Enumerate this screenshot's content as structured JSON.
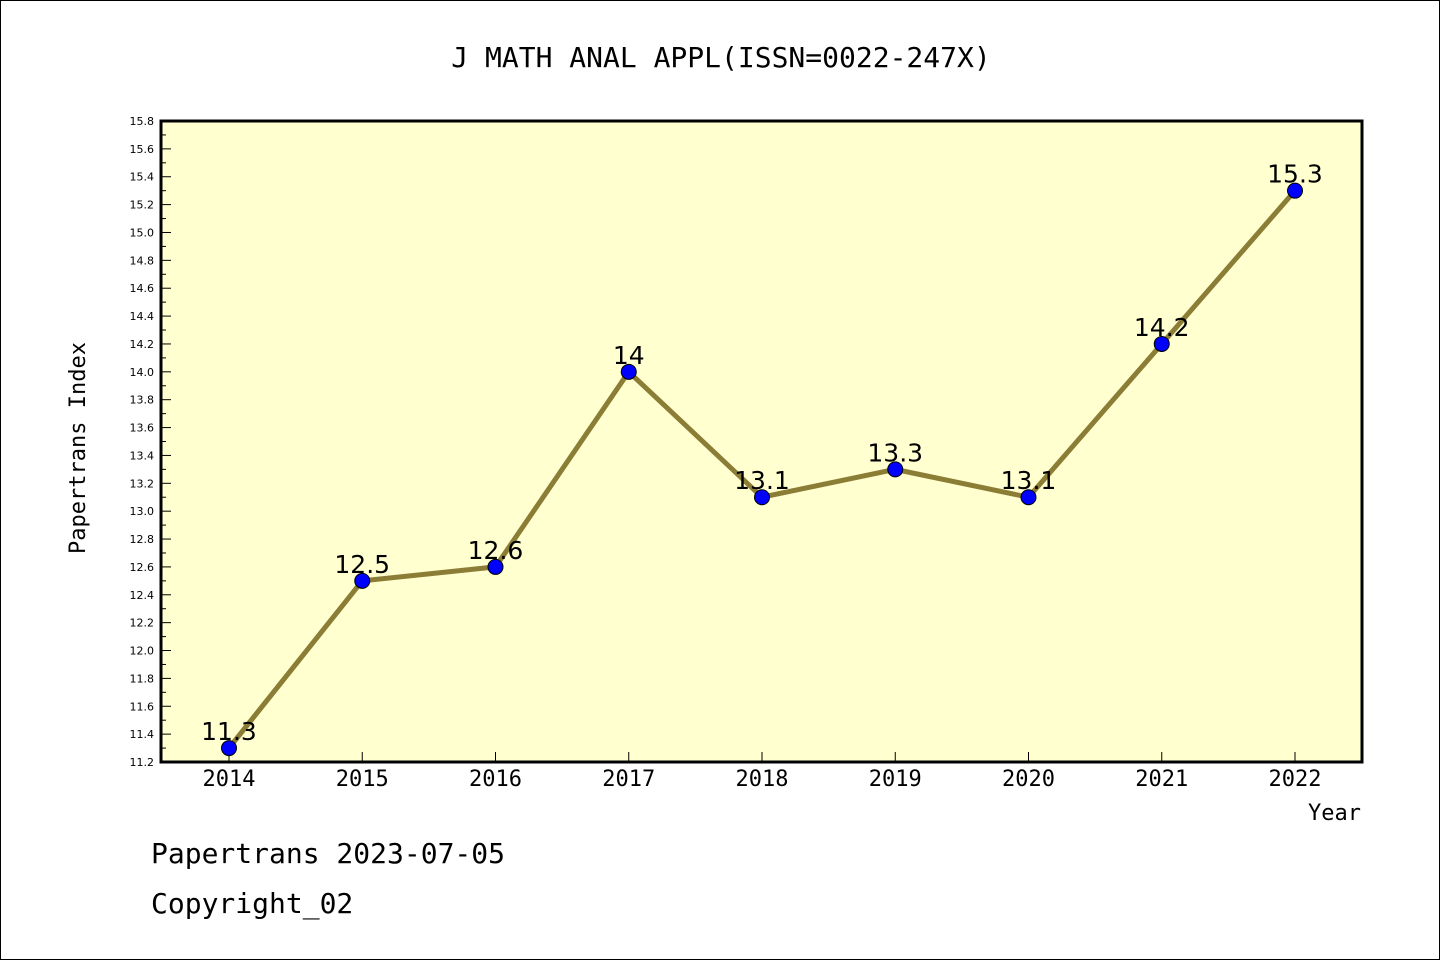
{
  "chart_data": {
    "type": "line",
    "title": "J MATH ANAL APPL(ISSN=0022-247X)",
    "xlabel": "Year",
    "ylabel": "Papertrans Index",
    "categories": [
      "2014",
      "2015",
      "2016",
      "2017",
      "2018",
      "2019",
      "2020",
      "2021",
      "2022"
    ],
    "series": [
      {
        "values": [
          11.3,
          12.5,
          12.6,
          14.0,
          13.1,
          13.3,
          13.1,
          14.2,
          15.3
        ]
      }
    ],
    "data_labels": [
      "11.3",
      "12.5",
      "12.6",
      "14",
      "13.1",
      "13.3",
      "13.1",
      "14.2",
      "15.3"
    ],
    "ylim": [
      11.2,
      15.8
    ],
    "yticks": [
      "11.2",
      "11.4",
      "11.6",
      "11.8",
      "12.0",
      "12.2",
      "12.4",
      "12.6",
      "12.8",
      "13.0",
      "13.2",
      "13.4",
      "13.6",
      "13.8",
      "14.0",
      "14.2",
      "14.4",
      "14.6",
      "14.8",
      "15.0",
      "15.2",
      "15.4",
      "15.6",
      "15.8"
    ],
    "grid": false,
    "colors": {
      "plot_bg": "#ffffd0",
      "line": "#8b7d35",
      "marker": "#0000ff"
    }
  },
  "footer": {
    "line1": "Papertrans 2023-07-05",
    "line2": "Copyright_02"
  }
}
